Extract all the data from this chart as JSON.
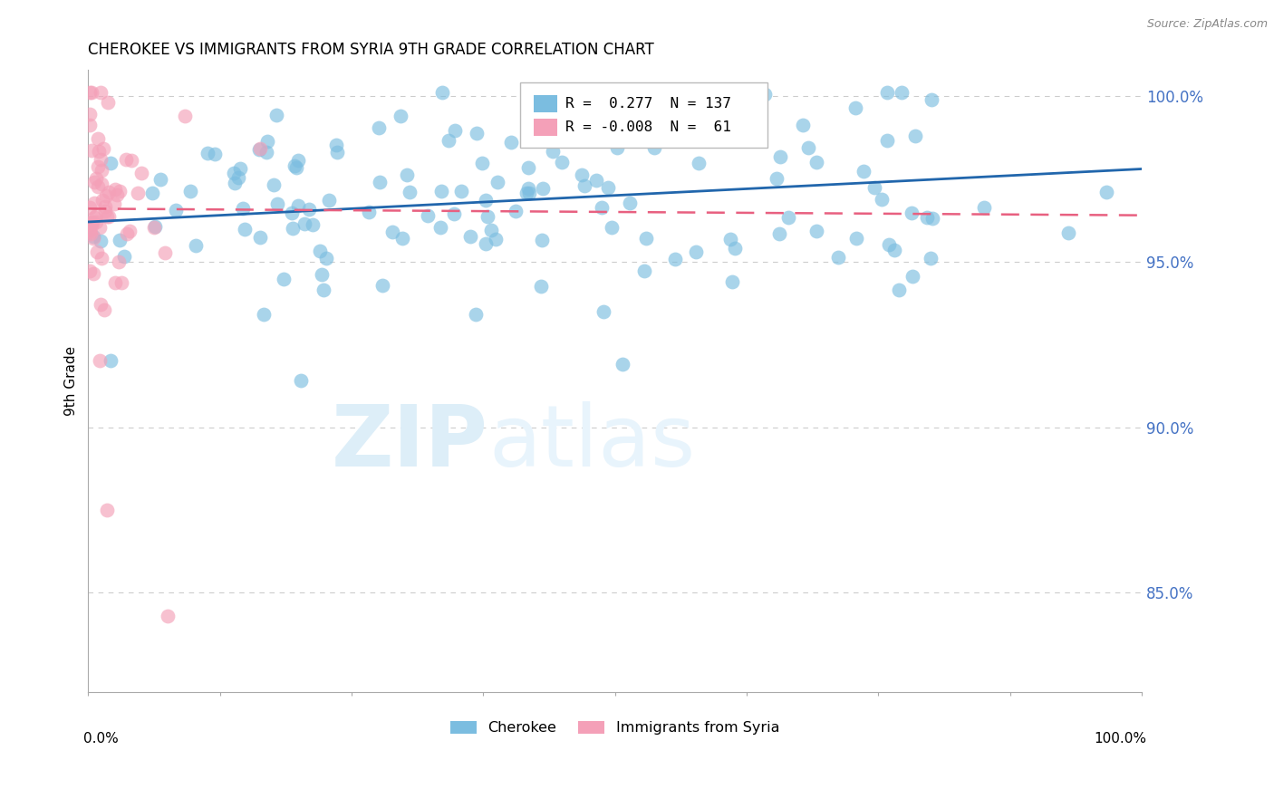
{
  "title": "CHEROKEE VS IMMIGRANTS FROM SYRIA 9TH GRADE CORRELATION CHART",
  "source": "Source: ZipAtlas.com",
  "ylabel": "9th Grade",
  "xlim": [
    0.0,
    1.0
  ],
  "ylim": [
    0.82,
    1.008
  ],
  "yticks": [
    0.85,
    0.9,
    0.95,
    1.0
  ],
  "ytick_labels": [
    "85.0%",
    "90.0%",
    "95.0%",
    "100.0%"
  ],
  "blue_color": "#7bbde0",
  "pink_color": "#f4a0b8",
  "blue_line_color": "#2166ac",
  "pink_line_color": "#e86080",
  "grid_color": "#cccccc",
  "watermark_color": "#ddeef8",
  "tick_label_color": "#4472c4",
  "legend_R1": "0.277",
  "legend_N1": "137",
  "legend_R2": "-0.008",
  "legend_N2": "61",
  "blue_line_x0": 0.0,
  "blue_line_x1": 1.0,
  "blue_line_y0": 0.962,
  "blue_line_y1": 0.978,
  "pink_line_x0": 0.0,
  "pink_line_x1": 1.0,
  "pink_line_y0": 0.966,
  "pink_line_y1": 0.964
}
